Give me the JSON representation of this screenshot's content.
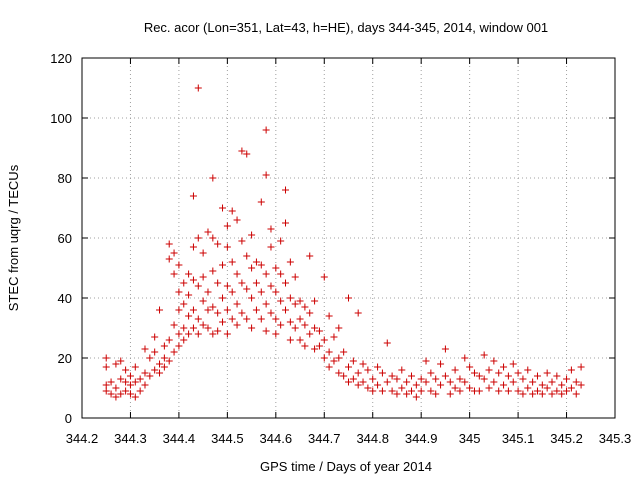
{
  "chart_data": {
    "type": "scatter",
    "title": "Rec. acor (Lon=351, Lat=43, h=HE), days 344-345, 2014, window 001",
    "xlabel": "GPS time / Days of year 2014",
    "ylabel": "STEC from uqrg / TECUs",
    "xlim": [
      344.2,
      345.3
    ],
    "ylim": [
      0,
      120
    ],
    "x_ticks": [
      344.2,
      344.3,
      344.4,
      344.5,
      344.6,
      344.7,
      344.8,
      344.9,
      345,
      345.1,
      345.2,
      345.3
    ],
    "x_tick_labels": [
      "344.2",
      "344.3",
      "344.4",
      "344.5",
      "344.6",
      "344.7",
      "344.8",
      "344.9",
      "345",
      "345.1",
      "345.2",
      "345.3"
    ],
    "y_ticks": [
      0,
      20,
      40,
      60,
      80,
      100,
      120
    ],
    "y_tick_labels": [
      "0",
      "20",
      "40",
      "60",
      "80",
      "100",
      "120"
    ],
    "grid": true,
    "marker": "plus",
    "color": "#cc0000",
    "points": [
      [
        344.25,
        20
      ],
      [
        344.25,
        17
      ],
      [
        344.25,
        11
      ],
      [
        344.25,
        9
      ],
      [
        344.26,
        8
      ],
      [
        344.26,
        12
      ],
      [
        344.27,
        18
      ],
      [
        344.27,
        10
      ],
      [
        344.27,
        7
      ],
      [
        344.28,
        13
      ],
      [
        344.28,
        8
      ],
      [
        344.28,
        19
      ],
      [
        344.29,
        12
      ],
      [
        344.29,
        16
      ],
      [
        344.29,
        9
      ],
      [
        344.3,
        11
      ],
      [
        344.3,
        14
      ],
      [
        344.3,
        8
      ],
      [
        344.31,
        17
      ],
      [
        344.31,
        12
      ],
      [
        344.31,
        7
      ],
      [
        344.32,
        13
      ],
      [
        344.32,
        9
      ],
      [
        344.33,
        15
      ],
      [
        344.33,
        23
      ],
      [
        344.33,
        11
      ],
      [
        344.34,
        14
      ],
      [
        344.34,
        20
      ],
      [
        344.35,
        16
      ],
      [
        344.35,
        22
      ],
      [
        344.35,
        27
      ],
      [
        344.36,
        18
      ],
      [
        344.36,
        15
      ],
      [
        344.36,
        36
      ],
      [
        344.37,
        20
      ],
      [
        344.37,
        24
      ],
      [
        344.37,
        17
      ],
      [
        344.38,
        58
      ],
      [
        344.38,
        53
      ],
      [
        344.38,
        26
      ],
      [
        344.38,
        19
      ],
      [
        344.39,
        31
      ],
      [
        344.39,
        48
      ],
      [
        344.39,
        22
      ],
      [
        344.39,
        55
      ],
      [
        344.4,
        42
      ],
      [
        344.4,
        36
      ],
      [
        344.4,
        28
      ],
      [
        344.4,
        24
      ],
      [
        344.4,
        51
      ],
      [
        344.41,
        45
      ],
      [
        344.41,
        38
      ],
      [
        344.41,
        30
      ],
      [
        344.41,
        26
      ],
      [
        344.42,
        48
      ],
      [
        344.42,
        41
      ],
      [
        344.42,
        34
      ],
      [
        344.42,
        28
      ],
      [
        344.43,
        74
      ],
      [
        344.43,
        57
      ],
      [
        344.43,
        46
      ],
      [
        344.43,
        36
      ],
      [
        344.43,
        30
      ],
      [
        344.44,
        110
      ],
      [
        344.44,
        60
      ],
      [
        344.44,
        44
      ],
      [
        344.44,
        33
      ],
      [
        344.44,
        28
      ],
      [
        344.45,
        55
      ],
      [
        344.45,
        47
      ],
      [
        344.45,
        39
      ],
      [
        344.45,
        31
      ],
      [
        344.46,
        62
      ],
      [
        344.46,
        42
      ],
      [
        344.46,
        36
      ],
      [
        344.46,
        30
      ],
      [
        344.47,
        80
      ],
      [
        344.47,
        60
      ],
      [
        344.47,
        49
      ],
      [
        344.47,
        37
      ],
      [
        344.47,
        28
      ],
      [
        344.48,
        58
      ],
      [
        344.48,
        45
      ],
      [
        344.48,
        35
      ],
      [
        344.48,
        29
      ],
      [
        344.49,
        70
      ],
      [
        344.49,
        51
      ],
      [
        344.49,
        40
      ],
      [
        344.49,
        32
      ],
      [
        344.5,
        64
      ],
      [
        344.5,
        57
      ],
      [
        344.5,
        44
      ],
      [
        344.5,
        36
      ],
      [
        344.5,
        28
      ],
      [
        344.51,
        69
      ],
      [
        344.51,
        52
      ],
      [
        344.51,
        42
      ],
      [
        344.51,
        33
      ],
      [
        344.52,
        66
      ],
      [
        344.52,
        48
      ],
      [
        344.52,
        38
      ],
      [
        344.52,
        31
      ],
      [
        344.53,
        89
      ],
      [
        344.53,
        59
      ],
      [
        344.53,
        45
      ],
      [
        344.53,
        35
      ],
      [
        344.54,
        88
      ],
      [
        344.54,
        54
      ],
      [
        344.54,
        43
      ],
      [
        344.54,
        33
      ],
      [
        344.55,
        61
      ],
      [
        344.55,
        50
      ],
      [
        344.55,
        40
      ],
      [
        344.55,
        30
      ],
      [
        344.56,
        52
      ],
      [
        344.56,
        45
      ],
      [
        344.56,
        36
      ],
      [
        344.57,
        72
      ],
      [
        344.57,
        51
      ],
      [
        344.57,
        42
      ],
      [
        344.57,
        33
      ],
      [
        344.58,
        96
      ],
      [
        344.58,
        81
      ],
      [
        344.58,
        48
      ],
      [
        344.58,
        38
      ],
      [
        344.58,
        29
      ],
      [
        344.59,
        63
      ],
      [
        344.59,
        57
      ],
      [
        344.59,
        44
      ],
      [
        344.59,
        35
      ],
      [
        344.6,
        50
      ],
      [
        344.6,
        42
      ],
      [
        344.6,
        33
      ],
      [
        344.6,
        28
      ],
      [
        344.61,
        59
      ],
      [
        344.61,
        48
      ],
      [
        344.61,
        39
      ],
      [
        344.61,
        31
      ],
      [
        344.62,
        76
      ],
      [
        344.62,
        65
      ],
      [
        344.62,
        45
      ],
      [
        344.62,
        36
      ],
      [
        344.63,
        52
      ],
      [
        344.63,
        40
      ],
      [
        344.63,
        32
      ],
      [
        344.63,
        26
      ],
      [
        344.64,
        47
      ],
      [
        344.64,
        38
      ],
      [
        344.64,
        30
      ],
      [
        344.65,
        39
      ],
      [
        344.65,
        33
      ],
      [
        344.65,
        26
      ],
      [
        344.66,
        37
      ],
      [
        344.66,
        31
      ],
      [
        344.66,
        24
      ],
      [
        344.67,
        54
      ],
      [
        344.67,
        35
      ],
      [
        344.67,
        28
      ],
      [
        344.68,
        39
      ],
      [
        344.68,
        30
      ],
      [
        344.68,
        23
      ],
      [
        344.69,
        29
      ],
      [
        344.69,
        24
      ],
      [
        344.7,
        47
      ],
      [
        344.7,
        26
      ],
      [
        344.7,
        20
      ],
      [
        344.71,
        34
      ],
      [
        344.71,
        22
      ],
      [
        344.71,
        17
      ],
      [
        344.72,
        27
      ],
      [
        344.72,
        19
      ],
      [
        344.73,
        30
      ],
      [
        344.73,
        20
      ],
      [
        344.73,
        15
      ],
      [
        344.74,
        22
      ],
      [
        344.74,
        14
      ],
      [
        344.75,
        40
      ],
      [
        344.75,
        17
      ],
      [
        344.75,
        12
      ],
      [
        344.76,
        19
      ],
      [
        344.76,
        13
      ],
      [
        344.77,
        35
      ],
      [
        344.77,
        15
      ],
      [
        344.77,
        11
      ],
      [
        344.78,
        18
      ],
      [
        344.78,
        12
      ],
      [
        344.79,
        16
      ],
      [
        344.79,
        10
      ],
      [
        344.8,
        13
      ],
      [
        344.8,
        9
      ],
      [
        344.81,
        17
      ],
      [
        344.81,
        11
      ],
      [
        344.82,
        15
      ],
      [
        344.82,
        9
      ],
      [
        344.83,
        25
      ],
      [
        344.83,
        12
      ],
      [
        344.84,
        14
      ],
      [
        344.84,
        9
      ],
      [
        344.85,
        13
      ],
      [
        344.85,
        8
      ],
      [
        344.86,
        16
      ],
      [
        344.86,
        10
      ],
      [
        344.87,
        12
      ],
      [
        344.87,
        8
      ],
      [
        344.88,
        14
      ],
      [
        344.88,
        9
      ],
      [
        344.89,
        11
      ],
      [
        344.89,
        7
      ],
      [
        344.9,
        13
      ],
      [
        344.9,
        9
      ],
      [
        344.91,
        19
      ],
      [
        344.91,
        12
      ],
      [
        344.92,
        15
      ],
      [
        344.92,
        9
      ],
      [
        344.93,
        13
      ],
      [
        344.93,
        8
      ],
      [
        344.94,
        18
      ],
      [
        344.94,
        11
      ],
      [
        344.95,
        23
      ],
      [
        344.95,
        14
      ],
      [
        344.96,
        12
      ],
      [
        344.96,
        8
      ],
      [
        344.97,
        16
      ],
      [
        344.97,
        10
      ],
      [
        344.98,
        13
      ],
      [
        344.98,
        9
      ],
      [
        344.99,
        20
      ],
      [
        344.99,
        12
      ],
      [
        345.0,
        17
      ],
      [
        345.0,
        10
      ],
      [
        345.01,
        15
      ],
      [
        345.01,
        9
      ],
      [
        345.02,
        14
      ],
      [
        345.02,
        9
      ],
      [
        345.03,
        21
      ],
      [
        345.03,
        13
      ],
      [
        345.04,
        16
      ],
      [
        345.04,
        10
      ],
      [
        345.05,
        19
      ],
      [
        345.05,
        12
      ],
      [
        345.06,
        15
      ],
      [
        345.06,
        9
      ],
      [
        345.07,
        17
      ],
      [
        345.07,
        11
      ],
      [
        345.08,
        14
      ],
      [
        345.08,
        9
      ],
      [
        345.09,
        18
      ],
      [
        345.09,
        12
      ],
      [
        345.1,
        15
      ],
      [
        345.1,
        9
      ],
      [
        345.11,
        13
      ],
      [
        345.11,
        8
      ],
      [
        345.12,
        16
      ],
      [
        345.12,
        10
      ],
      [
        345.13,
        12
      ],
      [
        345.13,
        8
      ],
      [
        345.14,
        14
      ],
      [
        345.14,
        9
      ],
      [
        345.15,
        11
      ],
      [
        345.15,
        8
      ],
      [
        345.16,
        15
      ],
      [
        345.16,
        10
      ],
      [
        345.17,
        12
      ],
      [
        345.17,
        8
      ],
      [
        345.18,
        14
      ],
      [
        345.18,
        9
      ],
      [
        345.19,
        11
      ],
      [
        345.19,
        8
      ],
      [
        345.2,
        13
      ],
      [
        345.2,
        9
      ],
      [
        345.21,
        16
      ],
      [
        345.21,
        10
      ],
      [
        345.22,
        12
      ],
      [
        345.22,
        8
      ],
      [
        345.23,
        17
      ],
      [
        345.23,
        11
      ]
    ]
  }
}
